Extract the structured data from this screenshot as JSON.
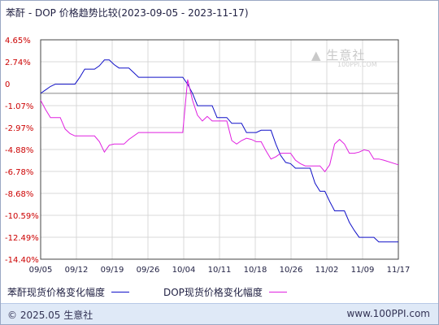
{
  "title": "苯酐 - DOP 价格趋势比较(2023-09-05 - 2023-11-17)",
  "watermark": {
    "main": "生意社",
    "sub": "100PPI.COM",
    "icon": "logo-icon"
  },
  "footer": {
    "left": "© 2025.05 生意社",
    "right": "www.100PPI.com"
  },
  "colors": {
    "series1": "#1010c8",
    "series2": "#e020e0",
    "grid": "#d8d8d8",
    "axis": "#444444"
  },
  "chart_data": {
    "type": "line",
    "title": "苯酐 - DOP 价格趋势比较(2023-09-05 - 2023-11-17)",
    "xlabel": "",
    "ylabel": "",
    "x_ticks": [
      "09/05",
      "09/12",
      "09/19",
      "09/26",
      "10/04",
      "10/11",
      "10/18",
      "10/26",
      "11/02",
      "11/09",
      "11/17"
    ],
    "y_ticks": [
      "4.65%",
      "2.74%",
      "0",
      "-1.07%",
      "-2.97%",
      "-4.88%",
      "-6.78%",
      "-8.68%",
      "-10.59%",
      "-12.49%",
      "-14.40%"
    ],
    "ylim": [
      -14.4,
      4.65
    ],
    "grid": true,
    "legend_position": "bottom",
    "x_start": "2023-09-05",
    "x_end": "2023-11-17",
    "series": [
      {
        "name": "苯酐现货价格变化幅度",
        "points": [
          [
            "2023-09-05",
            0.0
          ],
          [
            "2023-09-06",
            0.3
          ],
          [
            "2023-09-07",
            0.6
          ],
          [
            "2023-09-08",
            0.8
          ],
          [
            "2023-09-09",
            0.8
          ],
          [
            "2023-09-12",
            0.8
          ],
          [
            "2023-09-13",
            1.4
          ],
          [
            "2023-09-14",
            2.1
          ],
          [
            "2023-09-16",
            2.1
          ],
          [
            "2023-09-17",
            2.4
          ],
          [
            "2023-09-18",
            2.9
          ],
          [
            "2023-09-19",
            2.9
          ],
          [
            "2023-09-20",
            2.5
          ],
          [
            "2023-09-21",
            2.2
          ],
          [
            "2023-09-23",
            2.2
          ],
          [
            "2023-09-24",
            1.8
          ],
          [
            "2023-09-25",
            1.4
          ],
          [
            "2023-10-04",
            1.4
          ],
          [
            "2023-10-05",
            0.8
          ],
          [
            "2023-10-06",
            0.0
          ],
          [
            "2023-10-07",
            -1.07
          ],
          [
            "2023-10-10",
            -1.07
          ],
          [
            "2023-10-11",
            -2.1
          ],
          [
            "2023-10-13",
            -2.1
          ],
          [
            "2023-10-14",
            -2.6
          ],
          [
            "2023-10-16",
            -2.6
          ],
          [
            "2023-10-17",
            -3.4
          ],
          [
            "2023-10-19",
            -3.4
          ],
          [
            "2023-10-20",
            -3.2
          ],
          [
            "2023-10-22",
            -3.2
          ],
          [
            "2023-10-23",
            -4.4
          ],
          [
            "2023-10-24",
            -5.4
          ],
          [
            "2023-10-25",
            -6.0
          ],
          [
            "2023-10-26",
            -6.1
          ],
          [
            "2023-10-27",
            -6.5
          ],
          [
            "2023-10-30",
            -6.5
          ],
          [
            "2023-10-31",
            -7.8
          ],
          [
            "2023-11-01",
            -8.5
          ],
          [
            "2023-11-02",
            -8.5
          ],
          [
            "2023-11-03",
            -9.4
          ],
          [
            "2023-11-04",
            -10.2
          ],
          [
            "2023-11-06",
            -10.2
          ],
          [
            "2023-11-07",
            -11.2
          ],
          [
            "2023-11-08",
            -11.9
          ],
          [
            "2023-11-09",
            -12.5
          ],
          [
            "2023-11-12",
            -12.5
          ],
          [
            "2023-11-13",
            -12.9
          ],
          [
            "2023-11-17",
            -12.9
          ]
        ]
      },
      {
        "name": "DOP现货价格变化幅度",
        "points": [
          [
            "2023-09-05",
            -0.6
          ],
          [
            "2023-09-06",
            -1.4
          ],
          [
            "2023-09-07",
            -2.1
          ],
          [
            "2023-09-09",
            -2.1
          ],
          [
            "2023-09-10",
            -3.1
          ],
          [
            "2023-09-11",
            -3.5
          ],
          [
            "2023-09-12",
            -3.7
          ],
          [
            "2023-09-16",
            -3.7
          ],
          [
            "2023-09-17",
            -4.2
          ],
          [
            "2023-09-18",
            -5.1
          ],
          [
            "2023-09-19",
            -4.5
          ],
          [
            "2023-09-20",
            -4.4
          ],
          [
            "2023-09-22",
            -4.4
          ],
          [
            "2023-09-23",
            -4.0
          ],
          [
            "2023-09-25",
            -3.4
          ],
          [
            "2023-10-04",
            -3.4
          ],
          [
            "2023-10-05",
            1.2
          ],
          [
            "2023-10-06",
            -0.6
          ],
          [
            "2023-10-07",
            -1.9
          ],
          [
            "2023-10-08",
            -2.4
          ],
          [
            "2023-10-09",
            -2.0
          ],
          [
            "2023-10-10",
            -2.4
          ],
          [
            "2023-10-13",
            -2.4
          ],
          [
            "2023-10-14",
            -4.1
          ],
          [
            "2023-10-15",
            -4.4
          ],
          [
            "2023-10-16",
            -4.1
          ],
          [
            "2023-10-17",
            -3.9
          ],
          [
            "2023-10-18",
            -4.0
          ],
          [
            "2023-10-19",
            -4.2
          ],
          [
            "2023-10-20",
            -4.2
          ],
          [
            "2023-10-21",
            -5.0
          ],
          [
            "2023-10-22",
            -5.7
          ],
          [
            "2023-10-23",
            -5.5
          ],
          [
            "2023-10-24",
            -5.2
          ],
          [
            "2023-10-26",
            -5.2
          ],
          [
            "2023-10-27",
            -5.8
          ],
          [
            "2023-10-28",
            -6.1
          ],
          [
            "2023-10-29",
            -6.3
          ],
          [
            "2023-11-01",
            -6.3
          ],
          [
            "2023-11-02",
            -6.8
          ],
          [
            "2023-11-03",
            -6.2
          ],
          [
            "2023-11-04",
            -4.4
          ],
          [
            "2023-11-05",
            -4.0
          ],
          [
            "2023-11-06",
            -4.4
          ],
          [
            "2023-11-07",
            -5.2
          ],
          [
            "2023-11-08",
            -5.2
          ],
          [
            "2023-11-09",
            -5.1
          ],
          [
            "2023-11-10",
            -4.9
          ],
          [
            "2023-11-11",
            -5.0
          ],
          [
            "2023-11-12",
            -5.7
          ],
          [
            "2023-11-13",
            -5.7
          ],
          [
            "2023-11-14",
            -5.8
          ],
          [
            "2023-11-17",
            -6.2
          ]
        ]
      }
    ]
  }
}
